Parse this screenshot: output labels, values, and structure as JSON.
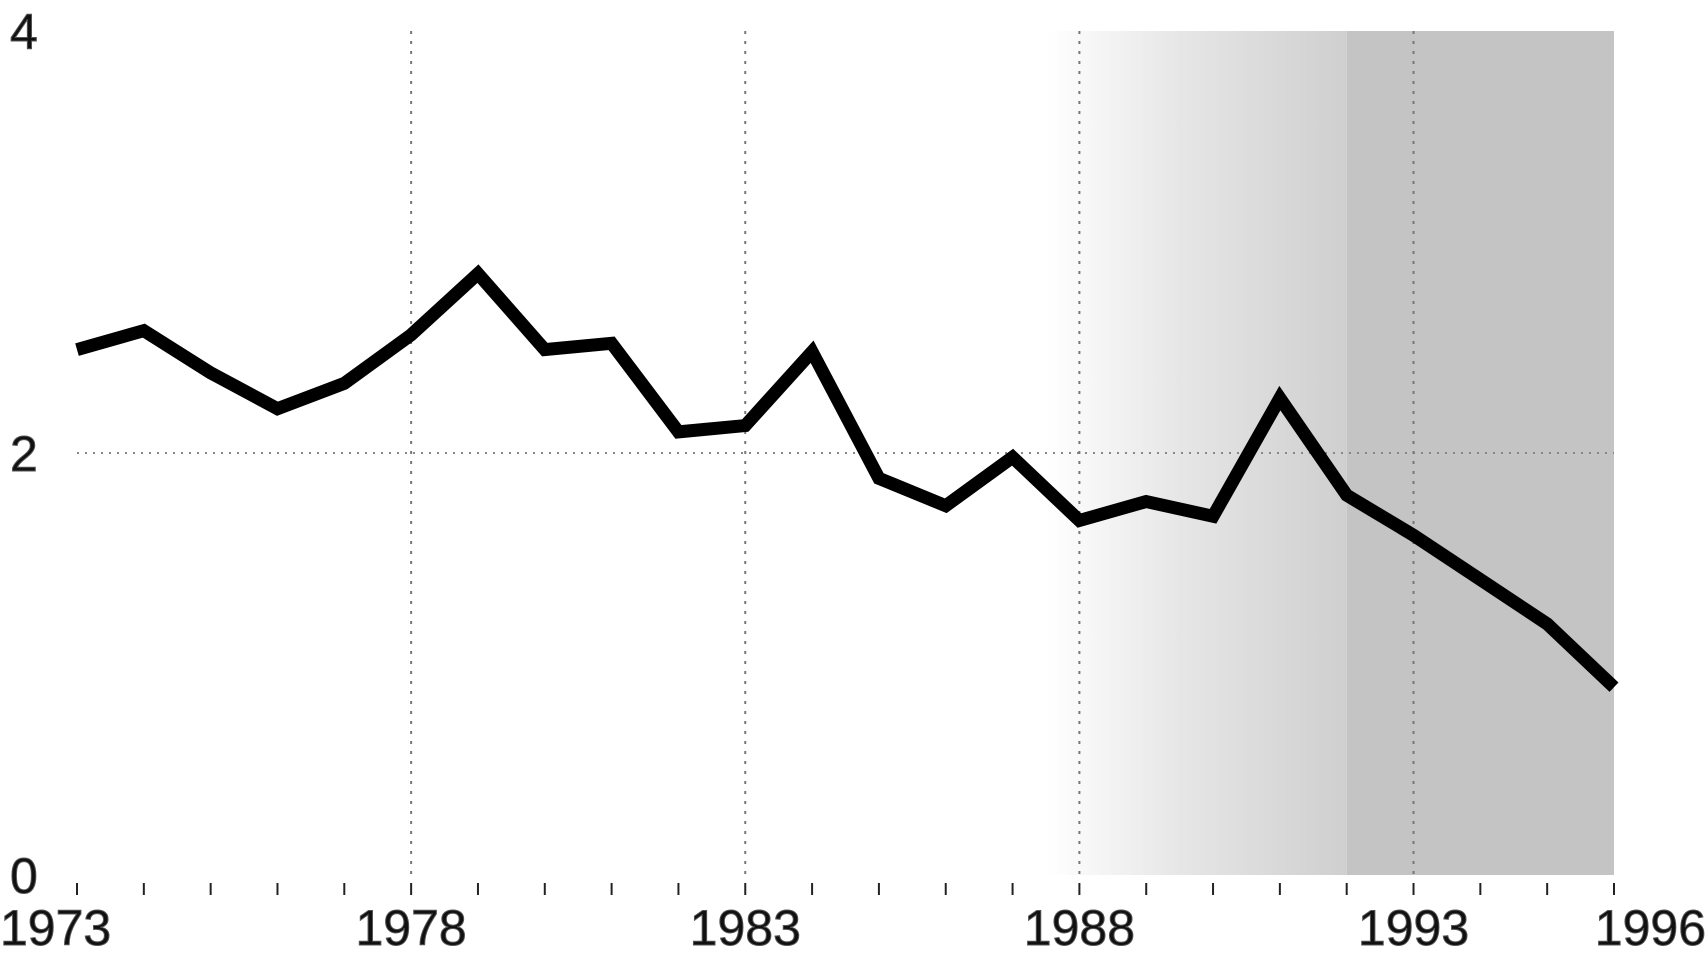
{
  "chart_data": {
    "type": "line",
    "x": [
      1973,
      1974,
      1975,
      1976,
      1977,
      1978,
      1979,
      1980,
      1981,
      1982,
      1983,
      1984,
      1985,
      1986,
      1987,
      1988,
      1989,
      1990,
      1991,
      1992,
      1993,
      1994,
      1995,
      1996
    ],
    "series": [
      {
        "color": "#000000",
        "values": [
          2.49,
          2.58,
          2.38,
          2.21,
          2.33,
          2.56,
          2.85,
          2.49,
          2.52,
          2.1,
          2.13,
          2.48,
          1.88,
          1.75,
          1.98,
          1.68,
          1.77,
          1.7,
          2.26,
          1.8,
          1.61,
          1.4,
          1.19,
          0.89
        ]
      }
    ],
    "xlim": [
      1973,
      1996
    ],
    "xticks": [
      1973,
      1978,
      1983,
      1988,
      1993,
      1996
    ],
    "ylim": [
      0,
      4
    ],
    "yticks": [
      0,
      2,
      4
    ],
    "grid": true
  }
}
